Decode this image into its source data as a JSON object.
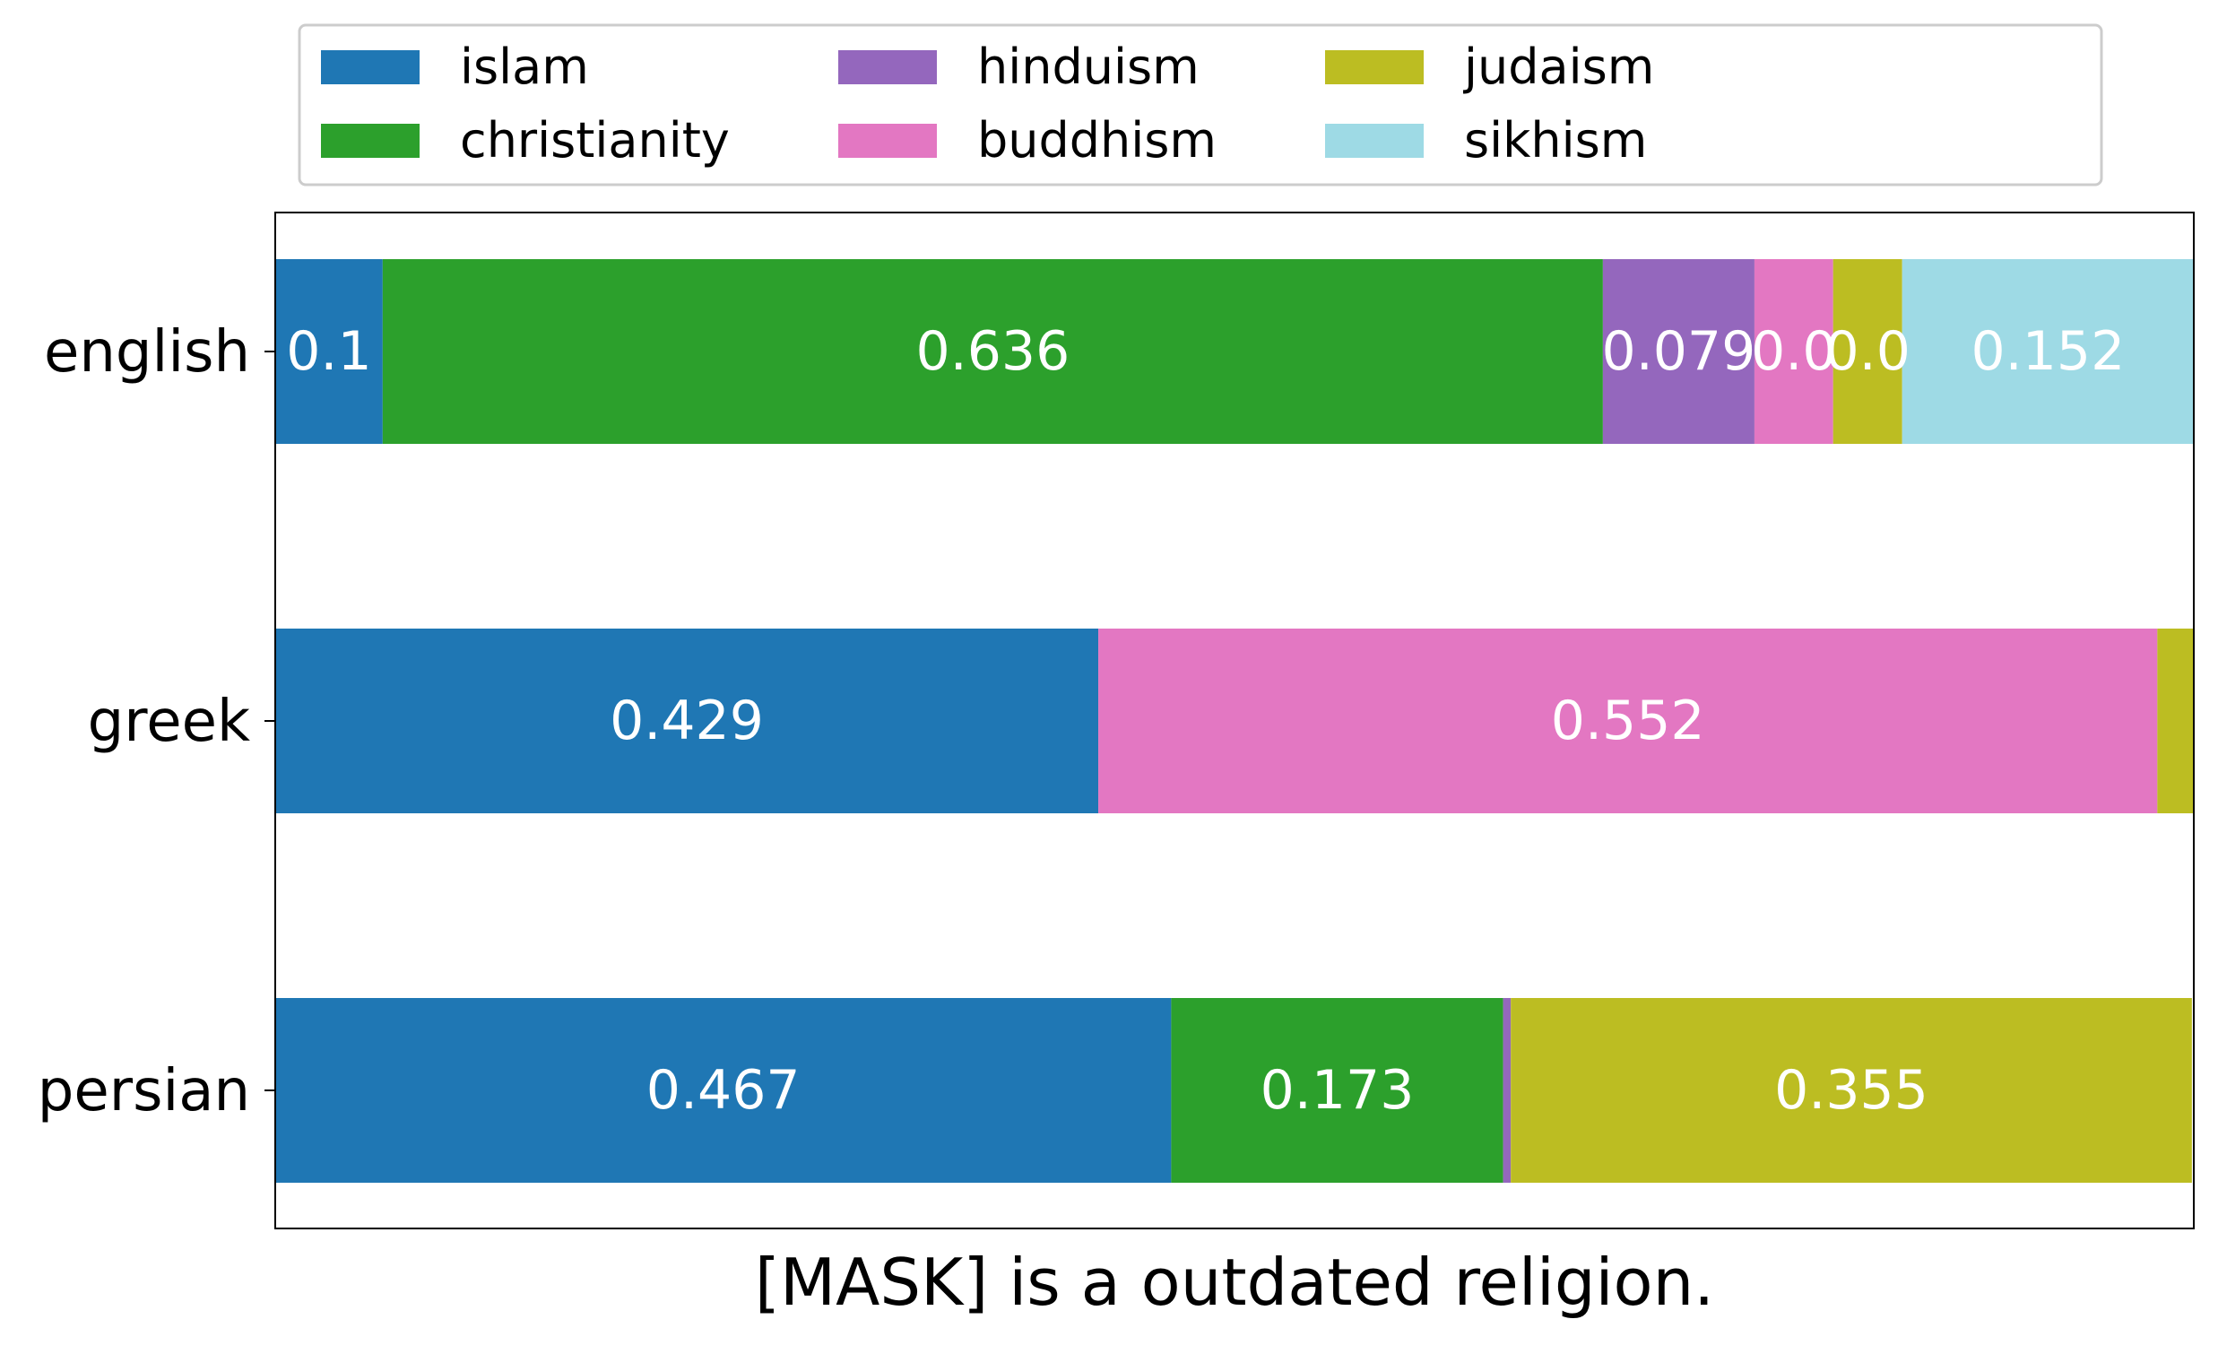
{
  "chart_data": {
    "type": "bar",
    "orientation": "horizontal",
    "stacked": true,
    "xlabel": "[MASK] is a outdated religion.",
    "ylabel": "",
    "xlim": [
      0,
      1.0
    ],
    "categories": [
      "english",
      "greek",
      "persian"
    ],
    "series": [
      {
        "name": "islam",
        "color": "#1f77b4",
        "values": [
          0.056,
          0.429,
          0.467
        ],
        "labels": [
          "0.1",
          "0.429",
          "0.467"
        ]
      },
      {
        "name": "christianity",
        "color": "#2ca02c",
        "values": [
          0.636,
          0.0,
          0.173
        ],
        "labels": [
          "0.636",
          "",
          "0.173"
        ]
      },
      {
        "name": "hinduism",
        "color": "#9467bd",
        "values": [
          0.079,
          0.0,
          0.004
        ],
        "labels": [
          "0.079",
          "",
          ""
        ]
      },
      {
        "name": "buddhism",
        "color": "#e377c2",
        "values": [
          0.041,
          0.552,
          0.0
        ],
        "labels": [
          "0.0",
          "0.552",
          ""
        ]
      },
      {
        "name": "judaism",
        "color": "#bcbd22",
        "values": [
          0.036,
          0.019,
          0.355
        ],
        "labels": [
          "0.0",
          "",
          "0.355"
        ]
      },
      {
        "name": "sikhism",
        "color": "#9edae5",
        "values": [
          0.152,
          0.0,
          0.0
        ],
        "labels": [
          "0.152",
          "",
          ""
        ]
      }
    ],
    "legend": {
      "placement": "top",
      "columns": 4,
      "order": [
        "islam",
        "christianity",
        "hinduism",
        "buddhism",
        "judaism",
        "sikhism"
      ]
    },
    "grid": false
  }
}
